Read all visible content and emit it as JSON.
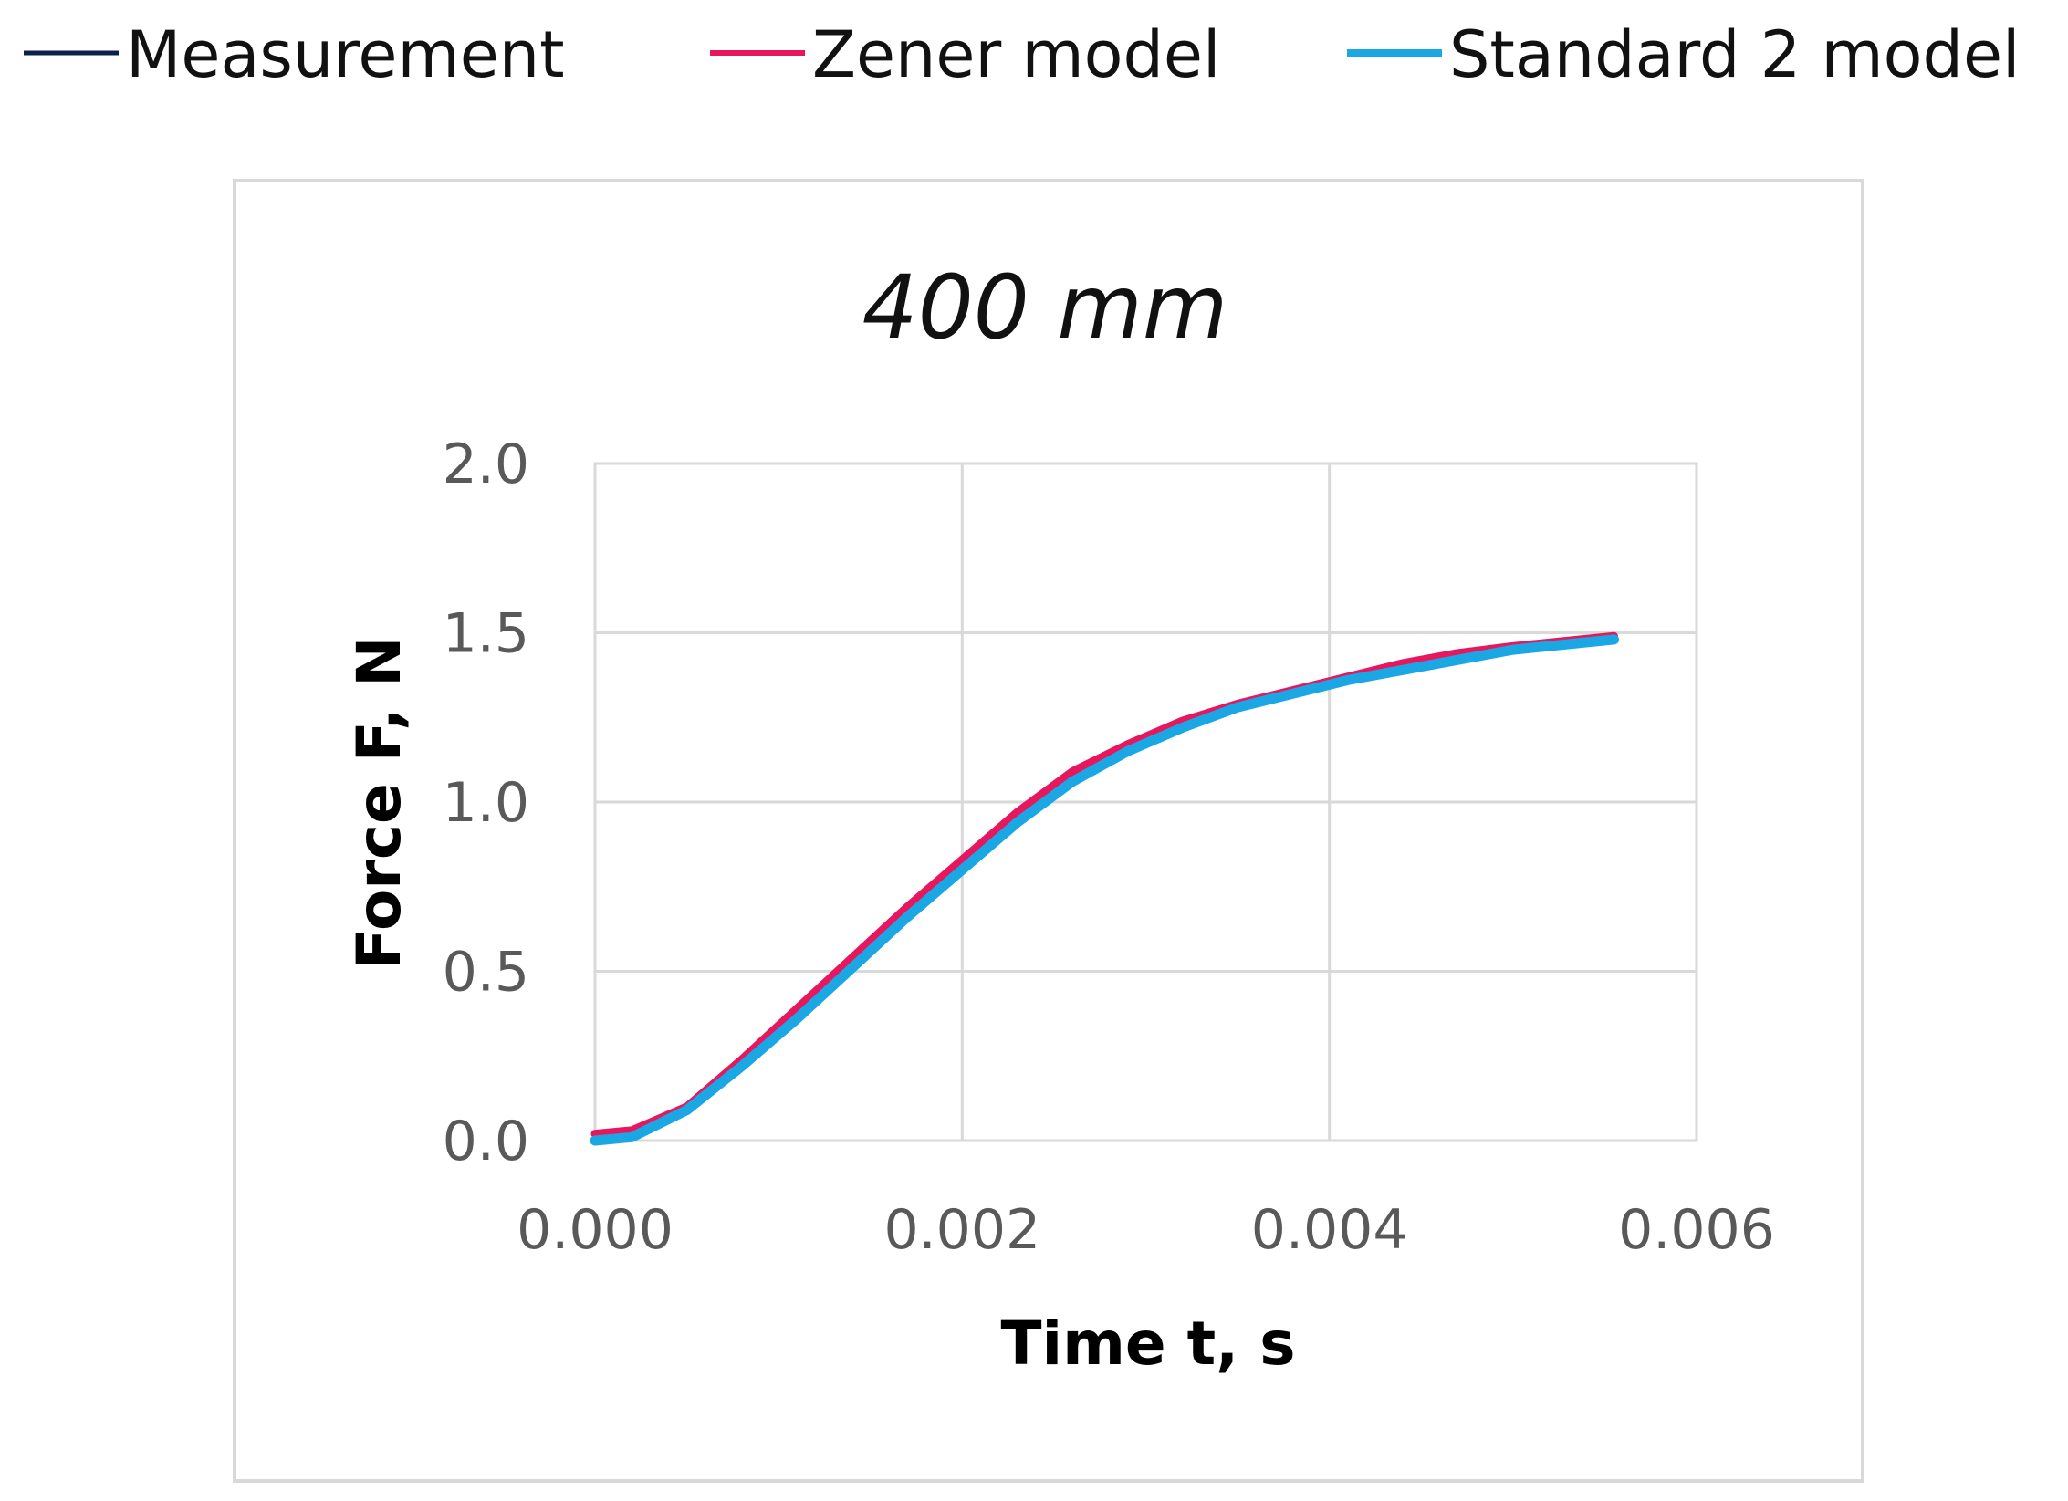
{
  "colors": {
    "measurement": "#0d1f4f",
    "zener": "#e8175d",
    "standard2": "#1aa7e3",
    "grid": "#d9d9d9",
    "frame": "#d9d9d9",
    "tick_text": "#595959"
  },
  "legend": [
    {
      "key": "measurement",
      "label": "Measurement"
    },
    {
      "key": "zener",
      "label": "Zener model"
    },
    {
      "key": "standard2",
      "label": "Standard 2 model"
    }
  ],
  "chart_data": {
    "type": "line",
    "title": "400 mm",
    "xlabel": "Time t, s",
    "ylabel": "Force F, N",
    "xlim": [
      0,
      0.006
    ],
    "ylim": [
      0,
      2.0
    ],
    "xticks": [
      "0.000",
      "0.002",
      "0.004",
      "0.006"
    ],
    "yticks": [
      "0.0",
      "0.5",
      "1.0",
      "1.5",
      "2.0"
    ],
    "grid": true,
    "legend_position": "top",
    "x": [
      0.0,
      0.0002,
      0.0005,
      0.0008,
      0.0011,
      0.0014,
      0.0017,
      0.002,
      0.0023,
      0.0026,
      0.0029,
      0.0032,
      0.0035,
      0.0038,
      0.0041,
      0.0044,
      0.0047,
      0.005,
      0.00555
    ],
    "series": [
      {
        "name": "Measurement",
        "key": "measurement",
        "values": [
          0.01,
          0.02,
          0.1,
          0.24,
          0.38,
          0.53,
          0.68,
          0.82,
          0.96,
          1.08,
          1.17,
          1.24,
          1.29,
          1.33,
          1.37,
          1.41,
          1.44,
          1.46,
          1.49
        ]
      },
      {
        "name": "Zener model",
        "key": "zener",
        "values": [
          0.02,
          0.03,
          0.1,
          0.24,
          0.39,
          0.54,
          0.69,
          0.83,
          0.97,
          1.09,
          1.17,
          1.24,
          1.29,
          1.33,
          1.37,
          1.41,
          1.44,
          1.46,
          1.49
        ]
      },
      {
        "name": "Standard 2 model",
        "key": "standard2",
        "values": [
          0.0,
          0.01,
          0.09,
          0.22,
          0.36,
          0.51,
          0.66,
          0.8,
          0.94,
          1.06,
          1.15,
          1.22,
          1.28,
          1.32,
          1.36,
          1.39,
          1.42,
          1.45,
          1.48
        ]
      }
    ]
  }
}
